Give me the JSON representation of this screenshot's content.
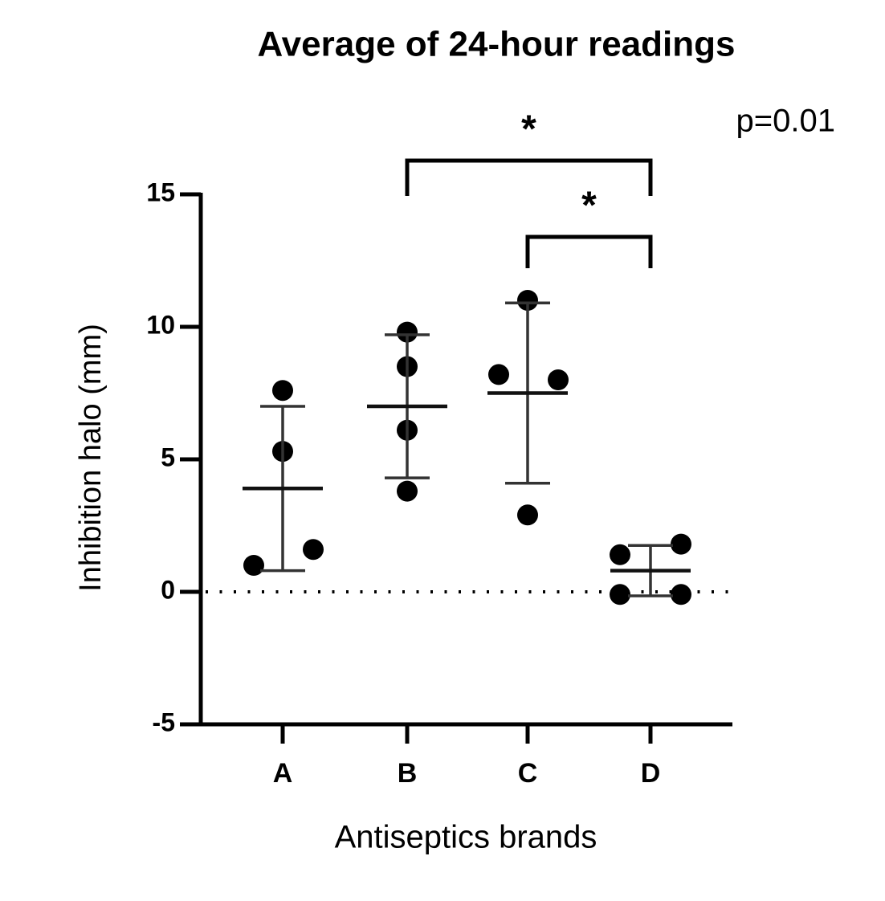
{
  "chart_data": {
    "type": "dot",
    "title": "Average of 24-hour readings",
    "x_label": "Antiseptics brands",
    "y_label": "Inhibition halo (mm)",
    "annotation": "p=0.01",
    "categories": [
      "A",
      "B",
      "C",
      "D"
    ],
    "groups": [
      {
        "values": [
          1.0,
          5.3,
          1.6,
          7.6
        ],
        "mean": 3.9,
        "sd": 3.1
      },
      {
        "values": [
          9.8,
          8.5,
          6.1,
          3.8
        ],
        "mean": 7.0,
        "sd": 2.7
      },
      {
        "values": [
          8.2,
          11.0,
          8.0,
          2.9
        ],
        "mean": 7.5,
        "sd": 3.4
      },
      {
        "values": [
          1.4,
          1.8,
          -0.1,
          -0.1
        ],
        "mean": 0.8,
        "sd": 0.95
      }
    ],
    "comparisons": [
      {
        "from": 1,
        "to": 3,
        "label": "*"
      },
      {
        "from": 2,
        "to": 3,
        "label": "*"
      }
    ],
    "reference_line": 0,
    "color": "#000000",
    "ylim": [
      -5,
      15
    ],
    "yticks": [
      -5,
      0,
      5,
      10,
      15
    ]
  }
}
